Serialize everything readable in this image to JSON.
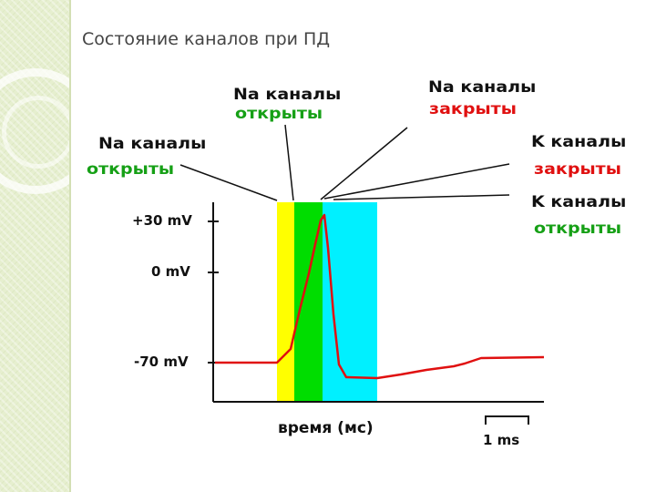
{
  "title": "Состояние каналов при ПД",
  "labels": {
    "na_open_mid": {
      "line1": "Na каналы",
      "line2": "открыты"
    },
    "na_closed": {
      "line1": "Na каналы",
      "line2": "закрыты"
    },
    "na_open_left": {
      "line1": "Na каналы",
      "line2": "открыты"
    },
    "k_closed": {
      "line1": "K каналы",
      "line2": "закрыты"
    },
    "k_open": {
      "line1": "K каналы",
      "line2": "открыты"
    }
  },
  "y_ticks": [
    "+30 mV",
    "0 mV",
    "-70 mV"
  ],
  "x_label": "время (мс)",
  "scale_bar": "1 ms",
  "colors": {
    "yellow_phase": "#ffff00",
    "green_phase": "#00dd00",
    "cyan_phase": "#00f0ff",
    "trace": "#e01010",
    "open_text": "#16a016",
    "closed_text": "#e01010"
  }
}
